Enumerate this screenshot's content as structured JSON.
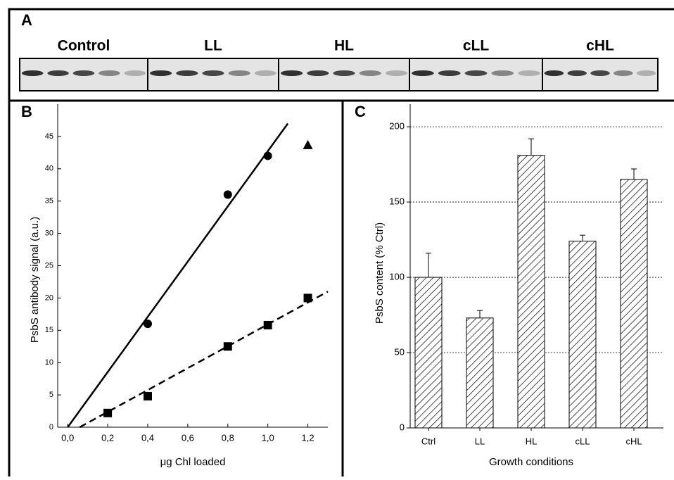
{
  "panel_a": {
    "label": "A",
    "lanes": [
      "Control",
      "LL",
      "HL",
      "cLL",
      "cHL"
    ]
  },
  "chart_data": [
    {
      "type": "scatter",
      "label": "B",
      "xlabel": "μg Chl loaded",
      "ylabel": "PsbS antibody signal (a.u.)",
      "xlim": [
        -0.05,
        1.3
      ],
      "ylim": [
        0,
        50
      ],
      "xticks": [
        {
          "value": 0,
          "label": "0,0"
        },
        {
          "value": 0.2,
          "label": "0,2"
        },
        {
          "value": 0.4,
          "label": "0,4"
        },
        {
          "value": 0.6,
          "label": "0,6"
        },
        {
          "value": 0.8,
          "label": "0,8"
        },
        {
          "value": 1.0,
          "label": "1,0"
        },
        {
          "value": 1.2,
          "label": "1,2"
        }
      ],
      "yticks": [
        0,
        5,
        10,
        15,
        20,
        25,
        30,
        35,
        40,
        45
      ],
      "series": [
        {
          "marker": "circle",
          "color": "#000000",
          "x": [
            0.4,
            0.8,
            1.0
          ],
          "values": [
            16,
            36,
            42
          ]
        },
        {
          "marker": "square",
          "color": "#000000",
          "x": [
            0.2,
            0.4,
            0.8,
            1.0,
            1.2
          ],
          "values": [
            2.2,
            4.8,
            12.5,
            15.8,
            20
          ]
        },
        {
          "marker": "triangle",
          "color": "#000000",
          "x": [
            1.2
          ],
          "values": [
            43.7
          ]
        },
        {
          "line": "solid",
          "color": "#000000",
          "x": [
            0,
            1.1
          ],
          "values": [
            0,
            47
          ]
        },
        {
          "line": "dashed",
          "color": "#000000",
          "x": [
            0.06,
            1.3
          ],
          "values": [
            0,
            21
          ]
        }
      ]
    },
    {
      "type": "bar",
      "label": "C",
      "xlabel": "Growth conditions",
      "ylabel": "PsbS content (% Ctrl)",
      "categories": [
        "Ctrl",
        "LL",
        "HL",
        "cLL",
        "cHL"
      ],
      "values": [
        100,
        73,
        181,
        124,
        165
      ],
      "errors": [
        16,
        5,
        11,
        4,
        7
      ],
      "ylim": [
        0,
        215
      ],
      "yticks": [
        0,
        50,
        100,
        150,
        200
      ],
      "grid": true,
      "color": "#000000"
    }
  ]
}
